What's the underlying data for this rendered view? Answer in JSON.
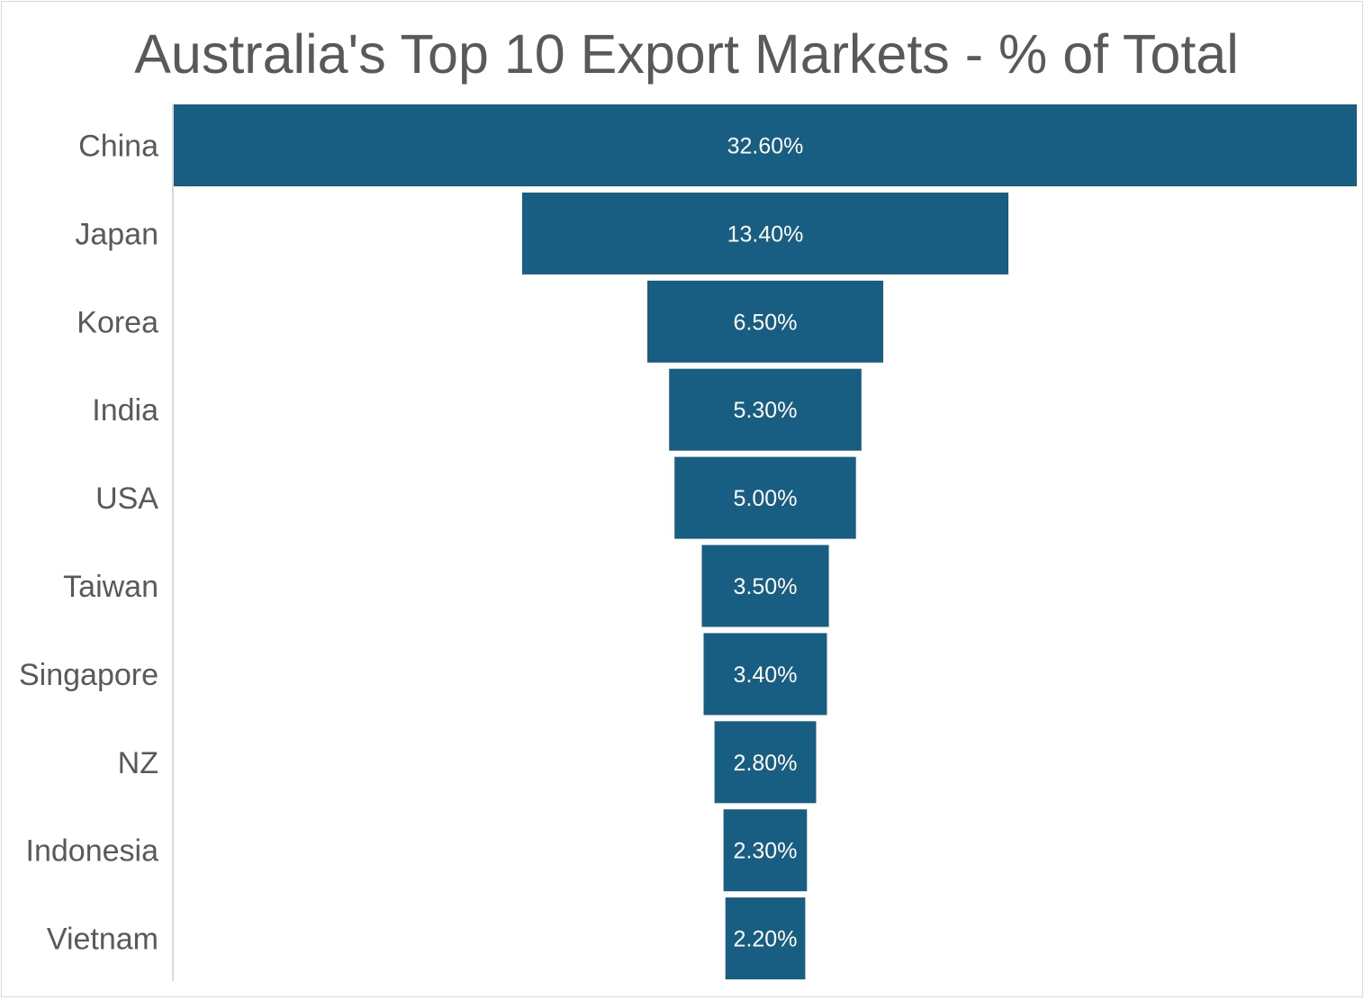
{
  "chart": {
    "title": "Australia's Top 10 Export Markets - % of Total"
  },
  "chart_data": {
    "type": "bar",
    "orientation": "funnel",
    "title": "Australia's Top 10 Export Markets - % of Total",
    "categories": [
      "China",
      "Japan",
      "Korea",
      "India",
      "USA",
      "Taiwan",
      "Singapore",
      "NZ",
      "Indonesia",
      "Vietnam"
    ],
    "values": [
      32.6,
      13.4,
      6.5,
      5.3,
      5.0,
      3.5,
      3.4,
      2.8,
      2.3,
      2.2
    ],
    "data_labels": [
      "32.60%",
      "13.40%",
      "6.50%",
      "5.30%",
      "5.00%",
      "3.50%",
      "3.40%",
      "2.80%",
      "2.30%",
      "2.20%"
    ],
    "xlabel": "",
    "ylabel": "",
    "grid": false,
    "legend": "none",
    "bar_color": "#175E82"
  }
}
